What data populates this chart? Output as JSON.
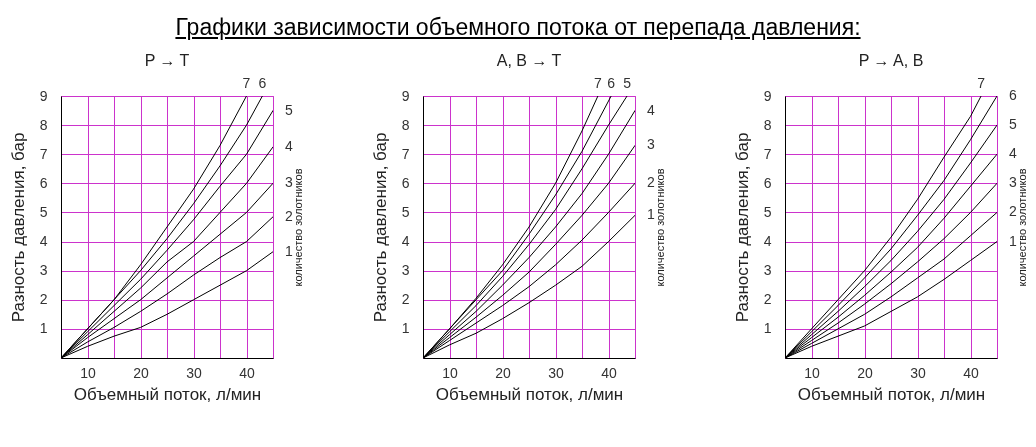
{
  "chart_data": [
    {
      "type": "line",
      "title": "Графики зависимости объемного потока от перепада давления:",
      "subtitle": "P → T",
      "xlabel": "Объемный поток, л/мин",
      "ylabel": "Разность давления, бар",
      "legend_title": "количество золотников",
      "xlim": [
        5,
        45
      ],
      "ylim": [
        0,
        9
      ],
      "xticks": [
        {
          "value": 5,
          "label": null
        },
        10,
        {
          "value": 15,
          "label": null
        },
        20,
        {
          "value": 25,
          "label": null
        },
        30,
        {
          "value": 35,
          "label": null
        },
        40,
        {
          "value": 45,
          "label": null
        }
      ],
      "yticks": [
        1,
        2,
        3,
        4,
        5,
        6,
        7,
        8,
        9
      ],
      "grid": true,
      "series": [
        {
          "name": "1",
          "color": "#000000",
          "x": [
            5,
            10,
            15,
            20,
            25,
            30,
            35,
            40,
            45
          ],
          "values": [
            0,
            0.4,
            0.75,
            1.05,
            1.5,
            2.0,
            2.5,
            3.0,
            3.65
          ]
        },
        {
          "name": "2",
          "color": "#000000",
          "x": [
            5,
            10,
            15,
            20,
            25,
            30,
            35,
            40,
            45
          ],
          "values": [
            0,
            0.55,
            1.05,
            1.6,
            2.2,
            2.85,
            3.45,
            4.0,
            4.85
          ]
        },
        {
          "name": "3",
          "color": "#000000",
          "x": [
            5,
            10,
            15,
            20,
            25,
            30,
            35,
            40,
            45
          ],
          "values": [
            0,
            0.7,
            1.35,
            2.0,
            2.75,
            3.5,
            4.25,
            5.0,
            6.0
          ]
        },
        {
          "name": "4",
          "color": "#000000",
          "x": [
            5,
            10,
            15,
            20,
            25,
            30,
            35,
            40,
            45
          ],
          "values": [
            0,
            0.8,
            1.6,
            2.4,
            3.3,
            4.0,
            5.0,
            6.0,
            7.25
          ]
        },
        {
          "name": "5",
          "color": "#000000",
          "x": [
            5,
            10,
            15,
            20,
            25,
            30,
            35,
            40,
            45
          ],
          "values": [
            0,
            0.9,
            1.8,
            2.7,
            3.7,
            4.75,
            5.9,
            7.0,
            8.5
          ]
        },
        {
          "name": "6",
          "color": "#000000",
          "x": [
            5,
            10,
            15,
            20,
            25,
            30,
            35,
            40,
            43
          ],
          "values": [
            0,
            1.0,
            2.0,
            3.0,
            4.1,
            5.3,
            6.6,
            8.0,
            9.0
          ]
        },
        {
          "name": "7",
          "color": "#000000",
          "x": [
            5,
            10,
            15,
            20,
            25,
            30,
            35,
            40
          ],
          "values": [
            0,
            1.0,
            2.0,
            3.2,
            4.5,
            5.8,
            7.3,
            9.0
          ]
        }
      ]
    },
    {
      "type": "line",
      "subtitle": "A, B → T",
      "xlabel": "Объемный поток, л/мин",
      "ylabel": "Разность давления, бар",
      "legend_title": "количество золотников",
      "xlim": [
        5,
        45
      ],
      "ylim": [
        0,
        9
      ],
      "xticks": [
        {
          "value": 5,
          "label": null
        },
        10,
        {
          "value": 15,
          "label": null
        },
        20,
        {
          "value": 25,
          "label": null
        },
        30,
        {
          "value": 35,
          "label": null
        },
        40,
        {
          "value": 45,
          "label": null
        }
      ],
      "yticks": [
        1,
        2,
        3,
        4,
        5,
        6,
        7,
        8,
        9
      ],
      "grid": true,
      "series": [
        {
          "name": "1",
          "color": "#000000",
          "x": [
            5,
            10,
            15,
            20,
            25,
            30,
            35,
            40,
            45
          ],
          "values": [
            0,
            0.45,
            0.85,
            1.35,
            1.9,
            2.5,
            3.15,
            4.0,
            4.9
          ]
        },
        {
          "name": "2",
          "color": "#000000",
          "x": [
            5,
            10,
            15,
            20,
            25,
            30,
            35,
            40,
            45
          ],
          "values": [
            0,
            0.6,
            1.2,
            1.8,
            2.45,
            3.2,
            4.05,
            5.0,
            6.0
          ]
        },
        {
          "name": "3",
          "color": "#000000",
          "x": [
            5,
            10,
            15,
            20,
            25,
            30,
            35,
            40,
            45
          ],
          "values": [
            0,
            0.7,
            1.4,
            2.15,
            2.95,
            3.9,
            4.9,
            6.0,
            7.3
          ]
        },
        {
          "name": "4",
          "color": "#000000",
          "x": [
            5,
            10,
            15,
            20,
            25,
            30,
            35,
            40,
            45
          ],
          "values": [
            0,
            0.8,
            1.6,
            2.5,
            3.45,
            4.5,
            5.65,
            7.0,
            8.5
          ]
        },
        {
          "name": "5",
          "color": "#000000",
          "x": [
            5,
            10,
            15,
            20,
            25,
            30,
            35,
            40,
            43.5
          ],
          "values": [
            0,
            0.9,
            1.8,
            2.8,
            3.9,
            5.1,
            6.5,
            8.0,
            9.0
          ]
        },
        {
          "name": "6",
          "color": "#000000",
          "x": [
            5,
            10,
            15,
            20,
            25,
            30,
            35,
            40.5
          ],
          "values": [
            0,
            1.0,
            2.0,
            3.0,
            4.25,
            5.6,
            7.1,
            9.0
          ]
        },
        {
          "name": "7",
          "color": "#000000",
          "x": [
            5,
            10,
            15,
            20,
            25,
            30,
            35,
            38
          ],
          "values": [
            0,
            1.0,
            2.05,
            3.2,
            4.5,
            6.0,
            7.8,
            9.0
          ]
        }
      ]
    },
    {
      "type": "line",
      "subtitle": "P → A, B",
      "xlabel": "Объемный поток, л/мин",
      "ylabel": "Разность давления, бар",
      "legend_title": "количество золотников",
      "xlim": [
        5,
        45
      ],
      "ylim": [
        0,
        9
      ],
      "xticks": [
        {
          "value": 5,
          "label": null
        },
        10,
        {
          "value": 15,
          "label": null
        },
        20,
        {
          "value": 25,
          "label": null
        },
        30,
        {
          "value": 35,
          "label": null
        },
        40,
        {
          "value": 45,
          "label": null
        }
      ],
      "yticks": [
        1,
        2,
        3,
        4,
        5,
        6,
        7,
        8,
        9
      ],
      "grid": true,
      "series": [
        {
          "name": "1",
          "color": "#000000",
          "x": [
            5,
            10,
            15,
            20,
            25,
            30,
            35,
            40,
            45
          ],
          "values": [
            0,
            0.4,
            0.75,
            1.1,
            1.6,
            2.1,
            2.7,
            3.35,
            4.0
          ]
        },
        {
          "name": "2",
          "color": "#000000",
          "x": [
            5,
            10,
            15,
            20,
            25,
            30,
            35,
            40,
            45
          ],
          "values": [
            0,
            0.5,
            1.0,
            1.5,
            2.1,
            2.75,
            3.4,
            4.2,
            5.0
          ]
        },
        {
          "name": "3",
          "color": "#000000",
          "x": [
            5,
            10,
            15,
            20,
            25,
            30,
            35,
            40,
            45
          ],
          "values": [
            0,
            0.6,
            1.2,
            1.85,
            2.55,
            3.3,
            4.1,
            5.0,
            6.0
          ]
        },
        {
          "name": "4",
          "color": "#000000",
          "x": [
            5,
            10,
            15,
            20,
            25,
            30,
            35,
            40,
            45
          ],
          "values": [
            0,
            0.7,
            1.4,
            2.15,
            2.95,
            3.8,
            4.8,
            5.9,
            7.0
          ]
        },
        {
          "name": "5",
          "color": "#000000",
          "x": [
            5,
            10,
            15,
            20,
            25,
            30,
            35,
            40,
            45
          ],
          "values": [
            0,
            0.8,
            1.6,
            2.45,
            3.35,
            4.35,
            5.45,
            6.7,
            8.0
          ]
        },
        {
          "name": "6",
          "color": "#000000",
          "x": [
            5,
            10,
            15,
            20,
            25,
            30,
            35,
            40,
            45
          ],
          "values": [
            0,
            0.9,
            1.8,
            2.75,
            3.75,
            4.9,
            6.1,
            7.5,
            9.0
          ]
        },
        {
          "name": "7",
          "color": "#000000",
          "x": [
            5,
            10,
            15,
            20,
            25,
            30,
            35,
            40,
            42
          ],
          "values": [
            0,
            1.0,
            2.0,
            3.0,
            4.15,
            5.45,
            6.9,
            8.3,
            9.0
          ]
        }
      ]
    }
  ]
}
